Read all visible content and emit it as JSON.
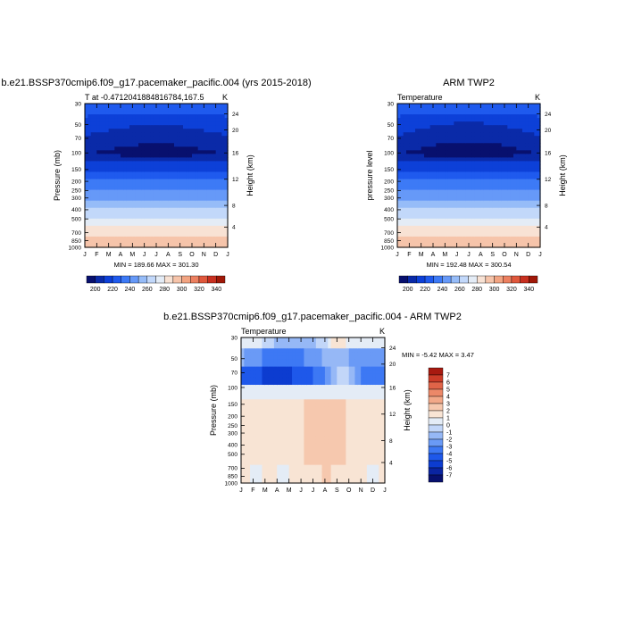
{
  "chart_data": [
    {
      "type": "heatmap",
      "title": "b.e21.BSSP370cmip6.f09_g17.pacemaker_pacific.004 (yrs 2015-2018)",
      "subtitle_left": "T at -0.471204188481678​4,167.5",
      "subtitle_right": "K",
      "ylabel": "Pressure (mb)",
      "ylabel_right": "Height (km)",
      "x_ticks": [
        "J",
        "F",
        "M",
        "A",
        "M",
        "J",
        "J",
        "A",
        "S",
        "O",
        "N",
        "D",
        "J"
      ],
      "y_ticks": [
        "30",
        "50",
        "70",
        "100",
        "150",
        "200",
        "250",
        "300",
        "400",
        "500",
        "700",
        "850",
        "1000"
      ],
      "y_ticks_right": [
        "24",
        "20",
        "16",
        "12",
        "8",
        "4"
      ],
      "stats": "MIN = 189.66 MAX = 301.30",
      "colorbar_labels": [
        "200",
        "220",
        "240",
        "260",
        "280",
        "300",
        "320",
        "340"
      ]
    },
    {
      "type": "heatmap",
      "title": "ARM TWP2",
      "subtitle_left": "Temperature",
      "subtitle_right": "K",
      "ylabel": "pressure level",
      "ylabel_right": "Height (km)",
      "x_ticks": [
        "J",
        "F",
        "M",
        "A",
        "M",
        "J",
        "J",
        "A",
        "S",
        "O",
        "N",
        "D",
        "J"
      ],
      "y_ticks": [
        "30",
        "50",
        "70",
        "100",
        "150",
        "200",
        "250",
        "300",
        "400",
        "500",
        "700",
        "850",
        "1000"
      ],
      "y_ticks_right": [
        "24",
        "20",
        "16",
        "12",
        "8",
        "4"
      ],
      "stats": "MIN = 192.48 MAX = 300.54",
      "colorbar_labels": [
        "200",
        "220",
        "240",
        "260",
        "280",
        "300",
        "320",
        "340"
      ]
    },
    {
      "type": "heatmap",
      "title": "b.e21.BSSP370cmip6.f09_g17.pacemaker_pacific.004 - ARM TWP2",
      "subtitle_left": "Temperature",
      "subtitle_right": "K",
      "ylabel": "Pressure (mb)",
      "ylabel_right": "Height (km)",
      "x_ticks": [
        "J",
        "F",
        "M",
        "A",
        "M",
        "J",
        "J",
        "A",
        "S",
        "O",
        "N",
        "D",
        "J"
      ],
      "y_ticks": [
        "30",
        "50",
        "70",
        "100",
        "150",
        "200",
        "250",
        "300",
        "400",
        "500",
        "700",
        "850",
        "1000"
      ],
      "y_ticks_right": [
        "24",
        "20",
        "16",
        "12",
        "8",
        "4"
      ],
      "stats": "MIN =  -5.42 MAX =   3.47",
      "colorbar_labels": [
        "7",
        "6",
        "5",
        "4",
        "3",
        "2",
        "1",
        "0",
        "-1",
        "-2",
        "-3",
        "-4",
        "-5",
        "-6",
        "-7"
      ]
    }
  ],
  "colors": {
    "abs_scale": [
      "#08106e",
      "#0a2aa8",
      "#0d40d8",
      "#1f5aee",
      "#3d7af6",
      "#6699f8",
      "#96bcf8",
      "#c2d8fa",
      "#e4ecf6",
      "#f8e2d4",
      "#f6c4aa",
      "#f2a482",
      "#ec8060",
      "#e0583c",
      "#c83020",
      "#a01808"
    ],
    "diff_scale": [
      "#07106e",
      "#0a24a0",
      "#0c3cd0",
      "#1e58ea",
      "#3d78f4",
      "#6a9af6",
      "#96b8f6",
      "#c2d6f8",
      "#e4ecf6",
      "#f8e4d4",
      "#f6c8ae",
      "#f2a888",
      "#ec8868",
      "#e06448",
      "#cc3c28",
      "#a81a10"
    ]
  }
}
